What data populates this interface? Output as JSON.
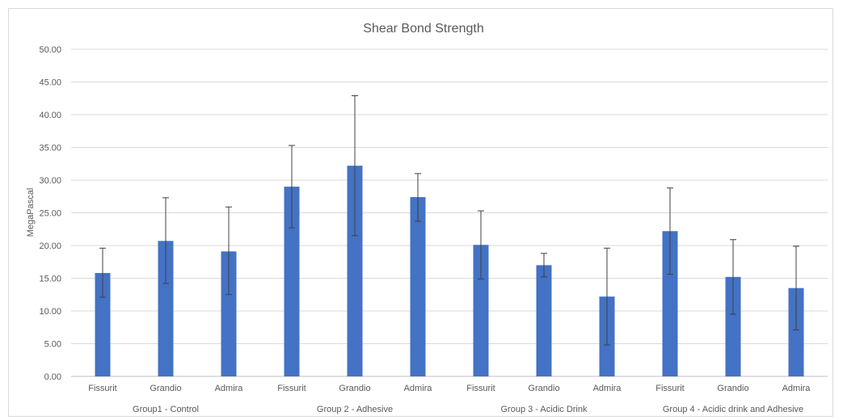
{
  "chart_data": {
    "type": "bar",
    "title": "Shear Bond Strength",
    "xlabel": "",
    "ylabel": "MegaPascal",
    "ylim": [
      0,
      50
    ],
    "y_ticks": [
      "0.00",
      "5.00",
      "10.00",
      "15.00",
      "20.00",
      "25.00",
      "30.00",
      "35.00",
      "40.00",
      "45.00",
      "50.00"
    ],
    "grid": true,
    "bar_color": "#4472c4",
    "groups": [
      {
        "name": "Group1 - Control",
        "categories": [
          "Fissurit",
          "Grandio",
          "Admira"
        ],
        "values": [
          15.8,
          20.7,
          19.1
        ],
        "error_high": [
          19.6,
          27.3,
          25.9
        ],
        "error_low": [
          12.1,
          14.2,
          12.5
        ]
      },
      {
        "name": "Group 2 - Adhesive",
        "categories": [
          "Fissurit",
          "Grandio",
          "Admira"
        ],
        "values": [
          29.0,
          32.2,
          27.4
        ],
        "error_high": [
          35.3,
          42.9,
          31.0
        ],
        "error_low": [
          22.7,
          21.5,
          23.7
        ]
      },
      {
        "name": "Group 3 - Acidic Drink",
        "categories": [
          "Fissurit",
          "Grandio",
          "Admira"
        ],
        "values": [
          20.1,
          17.0,
          12.2
        ],
        "error_high": [
          25.3,
          18.8,
          19.6
        ],
        "error_low": [
          14.9,
          15.2,
          4.8
        ]
      },
      {
        "name": "Group 4 - Acidic drink and Adhesive",
        "categories": [
          "Fissurit",
          "Grandio",
          "Admira"
        ],
        "values": [
          22.2,
          15.2,
          13.5
        ],
        "error_high": [
          28.8,
          20.9,
          19.9
        ],
        "error_low": [
          15.6,
          9.5,
          7.1
        ]
      }
    ]
  }
}
